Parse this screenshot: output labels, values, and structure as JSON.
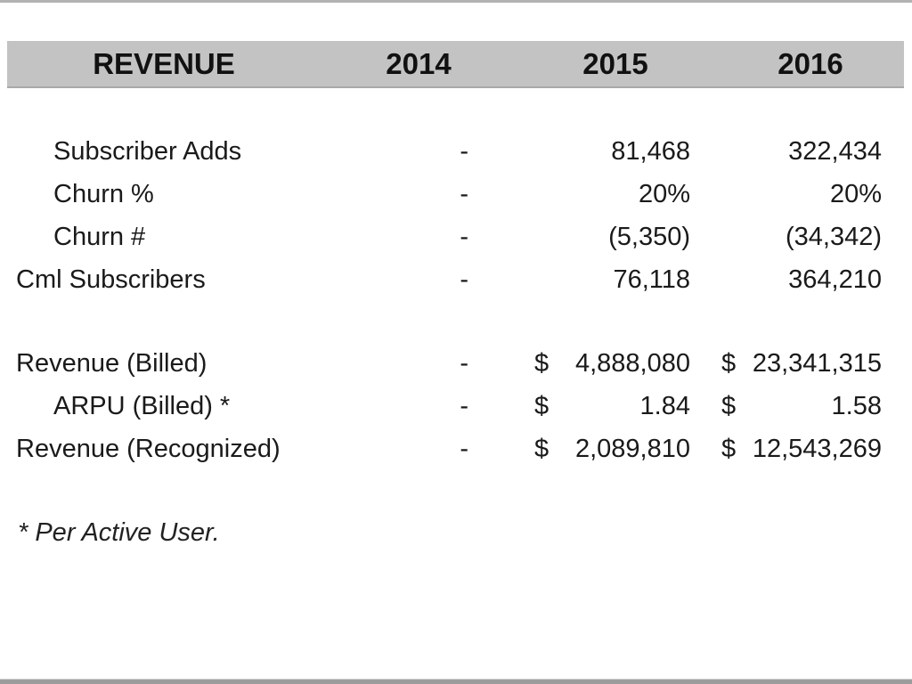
{
  "page": {
    "kind": "financial-table-slide",
    "background_color": "#ffffff",
    "text_color": "#1a1a1a",
    "header_bg_color": "#c3c3c3",
    "edge_bar_color": "#9c9c9c"
  },
  "header": {
    "title": "REVENUE",
    "years": [
      "2014",
      "2015",
      "2016"
    ]
  },
  "chart_data": {
    "type": "table",
    "title": "REVENUE",
    "columns": [
      "REVENUE",
      "2014",
      "2015",
      "2016"
    ],
    "rows": [
      [
        "Subscriber Adds",
        "-",
        "81,468",
        "322,434"
      ],
      [
        "Churn %",
        "-",
        "20%",
        "20%"
      ],
      [
        "Churn #",
        "-",
        "(5,350)",
        "(34,342)"
      ],
      [
        "Cml Subscribers",
        "-",
        "76,118",
        "364,210"
      ],
      [
        "Revenue (Billed)",
        "-",
        "$ 4,888,080",
        "$23,341,315"
      ],
      [
        "ARPU (Billed) *",
        "-",
        "$ 1.84",
        "$ 1.58"
      ],
      [
        "Revenue (Recognized)",
        "-",
        "$ 2,089,810",
        "$12,543,269"
      ]
    ]
  },
  "table": {
    "rows": [
      {
        "label": "Subscriber Adds",
        "indent": true,
        "dash": "-",
        "sign_2015": "",
        "amt_2015": "81,468",
        "sign_2016": "",
        "amt_2016": "322,434"
      },
      {
        "label": "Churn %",
        "indent": true,
        "dash": "-",
        "sign_2015": "",
        "amt_2015": "20%",
        "sign_2016": "",
        "amt_2016": "20%"
      },
      {
        "label": "Churn #",
        "indent": true,
        "dash": "-",
        "sign_2015": "",
        "amt_2015": "(5,350)",
        "sign_2016": "",
        "amt_2016": "(34,342)"
      },
      {
        "label": "Cml Subscribers",
        "indent": false,
        "dash": "-",
        "sign_2015": "",
        "amt_2015": "76,118",
        "sign_2016": "",
        "amt_2016": "364,210"
      },
      {
        "label": "Revenue (Billed)",
        "indent": false,
        "dash": "-",
        "sign_2015": "$",
        "amt_2015": "4,888,080",
        "sign_2016": "$",
        "amt_2016": "23,341,315"
      },
      {
        "label": "ARPU (Billed) *",
        "indent": true,
        "dash": "-",
        "sign_2015": "$",
        "amt_2015": "1.84",
        "sign_2016": "$",
        "amt_2016": "1.58"
      },
      {
        "label": "Revenue (Recognized)",
        "indent": false,
        "dash": "-",
        "sign_2015": "$",
        "amt_2015": "2,089,810",
        "sign_2016": "$",
        "amt_2016": "12,543,269"
      }
    ]
  },
  "footnote": "* Per Active User."
}
